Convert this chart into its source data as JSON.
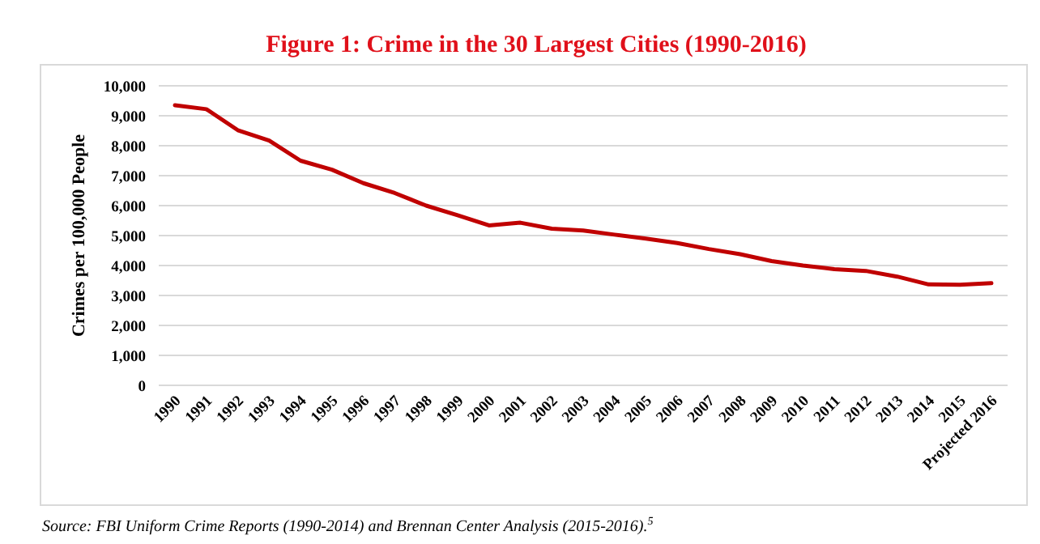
{
  "chart_data": {
    "type": "line",
    "title": "Figure 1: Crime in the 30 Largest Cities (1990-2016)",
    "ylabel": "Crimes per 100,000 People",
    "annotations": [
      "Source: FBI Uniform Crime Reports (1990-2014) and Brennan Center Analysis (2015-2016).$^{5}$"
    ],
    "categories": [
      "1990",
      "1991",
      "1992",
      "1993",
      "1994",
      "1995",
      "1996",
      "1997",
      "1998",
      "1999",
      "2000",
      "2001",
      "2002",
      "2003",
      "2004",
      "2005",
      "2006",
      "2007",
      "2008",
      "2009",
      "2010",
      "2011",
      "2012",
      "2013",
      "2014",
      "2015",
      "Projected 2016"
    ],
    "series": [
      {
        "color": "#c00000",
        "values": [
          9350,
          9220,
          8520,
          8170,
          7500,
          7200,
          6750,
          6420,
          6000,
          5680,
          5340,
          5430,
          5230,
          5170,
          5030,
          4900,
          4750,
          4550,
          4380,
          4150,
          4000,
          3880,
          3820,
          3630,
          3370,
          3360,
          3410
        ]
      }
    ],
    "ylim": [
      0,
      10000
    ],
    "yticks": [
      {
        "value": 0,
        "label": "0"
      },
      {
        "value": 1000,
        "label": "1,000"
      },
      {
        "value": 2000,
        "label": "2,000"
      },
      {
        "value": 3000,
        "label": "3,000"
      },
      {
        "value": 4000,
        "label": "4,000"
      },
      {
        "value": 5000,
        "label": "5,000"
      },
      {
        "value": 6000,
        "label": "6,000"
      },
      {
        "value": 7000,
        "label": "7,000"
      },
      {
        "value": 8000,
        "label": "8,000"
      },
      {
        "value": 9000,
        "label": "9,000"
      },
      {
        "value": 10000,
        "label": "10,000"
      }
    ],
    "grid": "y",
    "marker": "none",
    "line_style": "solid"
  }
}
